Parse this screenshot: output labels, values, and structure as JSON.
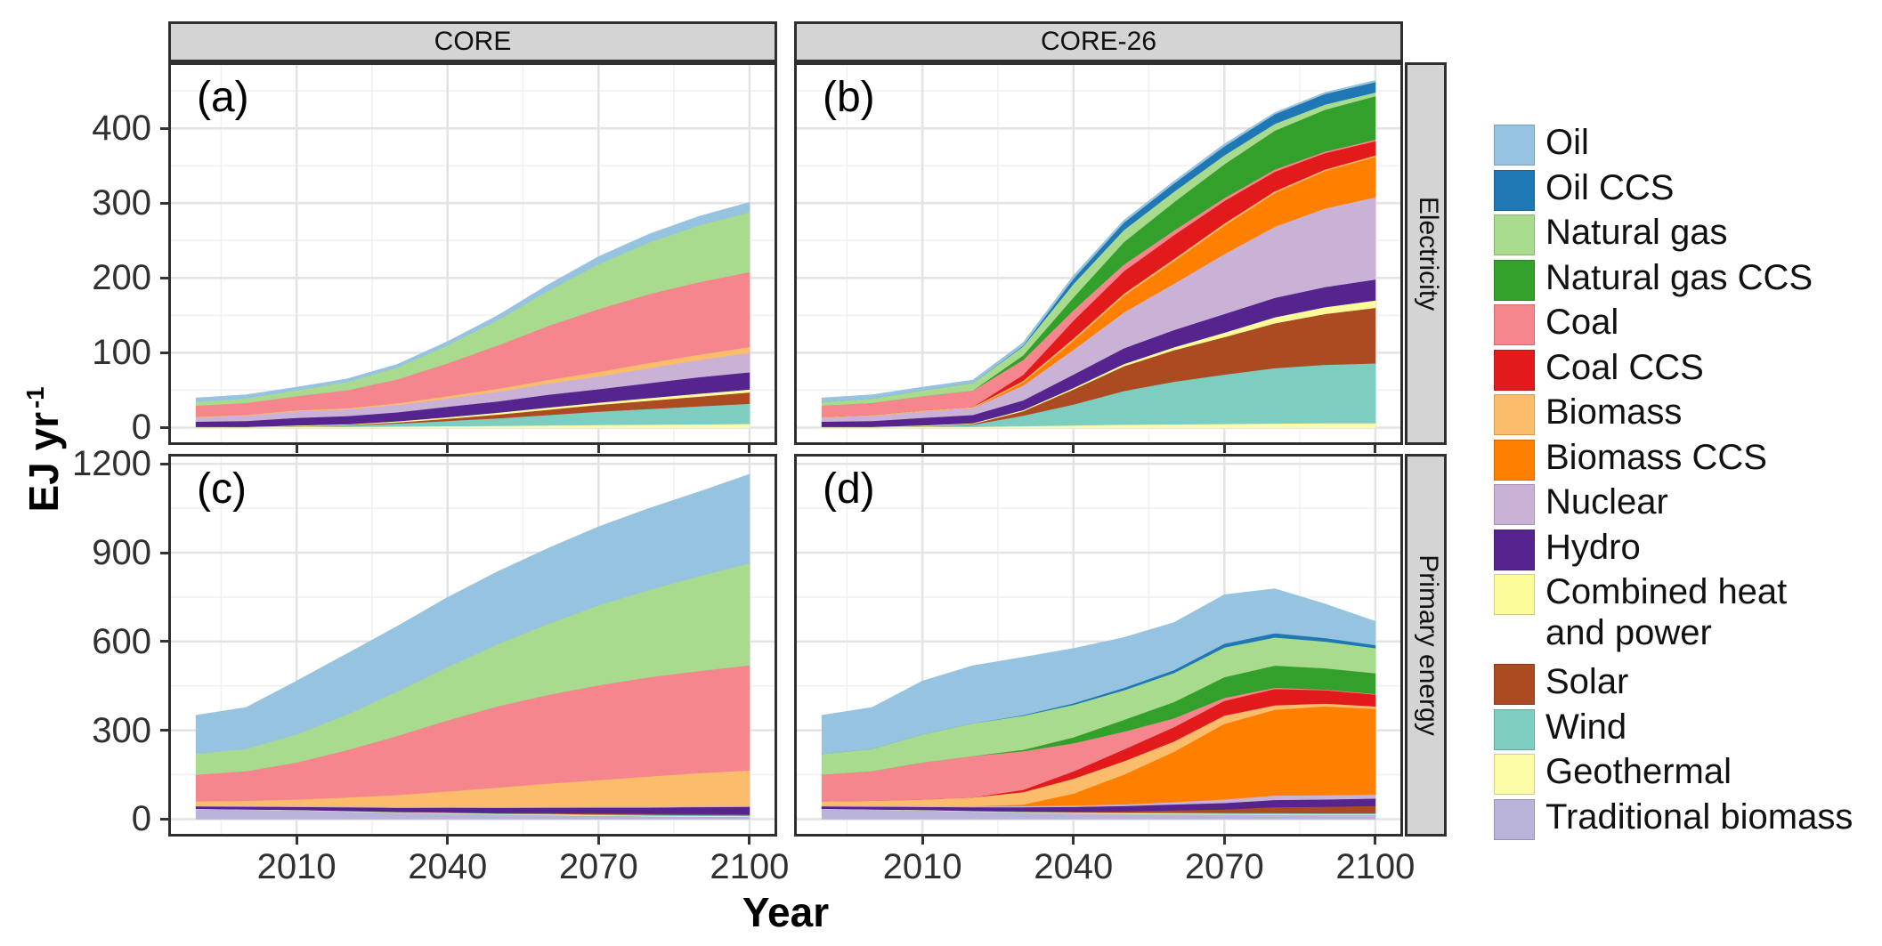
{
  "figure": {
    "y_axis_title_main": "EJ yr",
    "y_axis_title_sup": "-1",
    "x_axis_title": "Year"
  },
  "facets": {
    "columns": [
      {
        "id": "core",
        "label": "CORE"
      },
      {
        "id": "core26",
        "label": "CORE-26"
      }
    ],
    "rows": [
      {
        "id": "electricity",
        "label": "Electricity"
      },
      {
        "id": "primary",
        "label": "Primary energy"
      }
    ]
  },
  "colors": {
    "strip_bg": "#d4d4d4",
    "panel_border": "#2f2f2f",
    "grid_major": "#e3e3e3",
    "grid_minor": "#f0f0f0",
    "tick_text": "#303030"
  },
  "legend": {
    "items": [
      {
        "id": "oil",
        "label": "Oil",
        "color": "#96C3DF"
      },
      {
        "id": "oil_ccs",
        "label": "Oil CCS",
        "color": "#1F78B4"
      },
      {
        "id": "natural_gas",
        "label": "Natural gas",
        "color": "#A8DB8D"
      },
      {
        "id": "natural_gas_ccs",
        "label": "Natural gas CCS",
        "color": "#33A02C"
      },
      {
        "id": "coal",
        "label": "Coal",
        "color": "#F5868D"
      },
      {
        "id": "coal_ccs",
        "label": "Coal CCS",
        "color": "#E31A1C"
      },
      {
        "id": "biomass",
        "label": "Biomass",
        "color": "#FBBC6B"
      },
      {
        "id": "biomass_ccs",
        "label": "Biomass CCS",
        "color": "#FF7F00"
      },
      {
        "id": "nuclear",
        "label": "Nuclear",
        "color": "#CAB2D6"
      },
      {
        "id": "hydro",
        "label": "Hydro",
        "color": "#55248F"
      },
      {
        "id": "chp",
        "label": "Combined heat and power",
        "label_lines": [
          "Combined heat",
          "and power"
        ],
        "color": "#FCFC9B"
      },
      {
        "id": "solar",
        "label": "Solar",
        "color": "#AC4A22"
      },
      {
        "id": "wind",
        "label": "Wind",
        "color": "#7DCDC0"
      },
      {
        "id": "geothermal",
        "label": "Geothermal",
        "color": "#FDFDA9"
      },
      {
        "id": "traditional_biomass",
        "label": "Traditional biomass",
        "color": "#B9B3DA"
      }
    ]
  },
  "chart_data": {
    "type": "area",
    "stacked": true,
    "xlabel": "Year",
    "ylabel": "EJ yr-1",
    "x_domain": [
      1984.5,
      2105.5
    ],
    "x_ticks": [
      2010,
      2040,
      2070,
      2100
    ],
    "years": [
      1990,
      2000,
      2010,
      2020,
      2030,
      2040,
      2050,
      2060,
      2070,
      2080,
      2090,
      2100
    ],
    "stack_order": [
      "traditional_biomass",
      "geothermal",
      "wind",
      "solar",
      "chp",
      "hydro",
      "nuclear",
      "biomass_ccs",
      "biomass",
      "coal_ccs",
      "coal",
      "natural_gas_ccs",
      "natural_gas",
      "oil_ccs",
      "oil"
    ],
    "rows": [
      {
        "row": "Electricity",
        "y_ticks": [
          0,
          100,
          200,
          300,
          400
        ],
        "y_max_data": 465
      },
      {
        "row": "Primary energy",
        "y_ticks": [
          0,
          300,
          600,
          900,
          1200
        ],
        "y_max_data": 1175
      }
    ],
    "panels": [
      {
        "id": "a",
        "tag": "(a)",
        "facet_col": "CORE",
        "facet_row": "Electricity",
        "row_index": 0,
        "series": {
          "geothermal": [
            0.5,
            0.5,
            1,
            1,
            1.5,
            2,
            2.5,
            3,
            3.5,
            4,
            4.5,
            5
          ],
          "wind": [
            0,
            0,
            1,
            2,
            4,
            7,
            10,
            14,
            18,
            21,
            24,
            27
          ],
          "solar": [
            0,
            0,
            0,
            0.5,
            1.5,
            3,
            5,
            7,
            9,
            11,
            13,
            15
          ],
          "chp": [
            0.5,
            0.5,
            1,
            1,
            1.5,
            2,
            2.5,
            3,
            3,
            3.5,
            4,
            4
          ],
          "hydro": [
            7,
            8,
            10,
            11,
            12,
            14,
            15,
            17,
            18,
            20,
            22,
            23
          ],
          "nuclear": [
            6,
            7,
            9,
            9,
            10,
            11,
            13,
            15,
            17,
            20,
            23,
            26
          ],
          "biomass": [
            0.5,
            1,
            1,
            1.5,
            2,
            3,
            4,
            5,
            6,
            7,
            7,
            8
          ],
          "coal": [
            15,
            16,
            19,
            24,
            32,
            44,
            58,
            72,
            84,
            92,
            97,
            100
          ],
          "natural_gas": [
            5,
            6,
            8,
            11,
            16,
            24,
            34,
            47,
            60,
            69,
            76,
            80
          ],
          "oil": [
            5,
            5,
            4,
            4,
            4,
            5,
            6,
            8,
            10,
            11,
            12,
            13
          ]
        }
      },
      {
        "id": "b",
        "tag": "(b)",
        "facet_col": "CORE-26",
        "facet_row": "Electricity",
        "row_index": 0,
        "series": {
          "geothermal": [
            0.5,
            0.5,
            1,
            1,
            2,
            3,
            4,
            4.5,
            5,
            5.5,
            6,
            6
          ],
          "wind": [
            0,
            0,
            1,
            3,
            14,
            28,
            45,
            57,
            66,
            74,
            78,
            80
          ],
          "solar": [
            0,
            0,
            0,
            1,
            6,
            20,
            33,
            42,
            50,
            60,
            68,
            74
          ],
          "chp": [
            0.5,
            0.5,
            1,
            1,
            1.5,
            2,
            3,
            4,
            6,
            8,
            9,
            10
          ],
          "hydro": [
            7,
            8,
            10,
            11,
            13,
            18,
            21,
            23,
            25,
            26,
            27,
            28
          ],
          "nuclear": [
            6,
            7,
            9,
            9,
            20,
            33,
            48,
            62,
            80,
            95,
            105,
            110
          ],
          "biomass_ccs": [
            0,
            0,
            0,
            0,
            4,
            12,
            22,
            30,
            38,
            45,
            50,
            54
          ],
          "biomass": [
            0.5,
            1,
            1,
            1.5,
            2,
            3,
            3,
            3,
            3,
            2.5,
            2,
            2
          ],
          "coal_ccs": [
            0,
            0,
            0,
            0,
            8,
            24,
            30,
            32,
            30,
            26,
            22,
            19
          ],
          "coal": [
            15,
            16,
            19,
            22,
            20,
            14,
            9,
            6,
            4,
            3,
            2,
            2
          ],
          "natural_gas_ccs": [
            0,
            0,
            0,
            0,
            6,
            17,
            30,
            38,
            45,
            52,
            56,
            58
          ],
          "natural_gas": [
            5,
            6,
            8,
            10,
            12,
            18,
            16,
            14,
            12,
            9,
            7,
            5
          ],
          "oil_ccs": [
            0,
            0,
            0,
            0,
            1,
            7,
            10,
            11,
            12,
            13,
            14,
            14
          ],
          "oil": [
            5,
            5,
            4,
            4,
            4,
            4,
            3,
            3,
            3,
            2,
            2,
            2
          ]
        }
      },
      {
        "id": "c",
        "tag": "(c)",
        "facet_col": "CORE",
        "facet_row": "Primary energy",
        "row_index": 1,
        "series": {
          "traditional_biomass": [
            35,
            33,
            30,
            26,
            22,
            19,
            16,
            14,
            12,
            10,
            9,
            8
          ],
          "geothermal": [
            0.5,
            0.5,
            1,
            1,
            1,
            1.5,
            1.5,
            2,
            2,
            2,
            2,
            2
          ],
          "wind": [
            0,
            0,
            0.5,
            1,
            1.5,
            2,
            2,
            2.5,
            2.5,
            3,
            3,
            3
          ],
          "solar": [
            0,
            0,
            0,
            0.5,
            1,
            1.5,
            2,
            2.5,
            3,
            3.5,
            4,
            4
          ],
          "hydro": [
            8,
            9,
            10,
            12,
            13,
            15,
            17,
            18,
            20,
            21,
            23,
            25
          ],
          "nuclear": [
            2,
            2,
            3,
            3,
            3,
            3,
            3,
            3,
            3,
            3,
            3,
            3
          ],
          "biomass": [
            15,
            18,
            22,
            30,
            40,
            52,
            65,
            78,
            90,
            102,
            112,
            120
          ],
          "coal": [
            90,
            100,
            125,
            160,
            200,
            240,
            275,
            300,
            320,
            335,
            345,
            355
          ],
          "natural_gas": [
            70,
            75,
            95,
            120,
            150,
            180,
            210,
            240,
            270,
            295,
            320,
            345
          ],
          "oil": [
            130,
            140,
            180,
            205,
            220,
            235,
            245,
            255,
            265,
            275,
            285,
            300
          ]
        }
      },
      {
        "id": "d",
        "tag": "(d)",
        "facet_col": "CORE-26",
        "facet_row": "Primary energy",
        "row_index": 1,
        "series": {
          "traditional_biomass": [
            35,
            33,
            30,
            26,
            23,
            20,
            18,
            17,
            16,
            15,
            15,
            15
          ],
          "geothermal": [
            0.5,
            0.5,
            1,
            1,
            1,
            1.5,
            2,
            2,
            2,
            2,
            2,
            2
          ],
          "wind": [
            0,
            0,
            0.5,
            1,
            1.5,
            2,
            2.5,
            3,
            3,
            4,
            3,
            3
          ],
          "solar": [
            0,
            0,
            0,
            0.5,
            1,
            2,
            4,
            8,
            12,
            20,
            22,
            25
          ],
          "hydro": [
            8,
            9,
            10,
            12,
            14,
            16,
            18,
            20,
            22,
            24,
            25,
            25
          ],
          "nuclear": [
            2,
            2,
            3,
            3,
            4,
            5,
            6,
            8,
            12,
            15,
            14,
            13
          ],
          "biomass_ccs": [
            0,
            0,
            0,
            0,
            5,
            40,
            100,
            170,
            255,
            290,
            300,
            290
          ],
          "biomass": [
            15,
            18,
            22,
            30,
            42,
            50,
            45,
            35,
            28,
            15,
            10,
            8
          ],
          "coal_ccs": [
            0,
            0,
            0,
            0,
            8,
            25,
            40,
            48,
            50,
            55,
            45,
            40
          ],
          "coal": [
            90,
            100,
            125,
            140,
            130,
            95,
            60,
            30,
            10,
            4,
            2,
            2
          ],
          "natural_gas_ccs": [
            0,
            0,
            0,
            0,
            5,
            20,
            40,
            55,
            70,
            75,
            72,
            70
          ],
          "natural_gas": [
            70,
            75,
            95,
            110,
            115,
            110,
            100,
            98,
            100,
            95,
            90,
            85
          ],
          "oil_ccs": [
            0,
            0,
            0,
            0,
            2,
            5,
            8,
            10,
            13,
            14,
            12,
            10
          ],
          "oil": [
            130,
            140,
            180,
            195,
            195,
            185,
            170,
            160,
            165,
            150,
            115,
            80
          ]
        }
      }
    ]
  }
}
